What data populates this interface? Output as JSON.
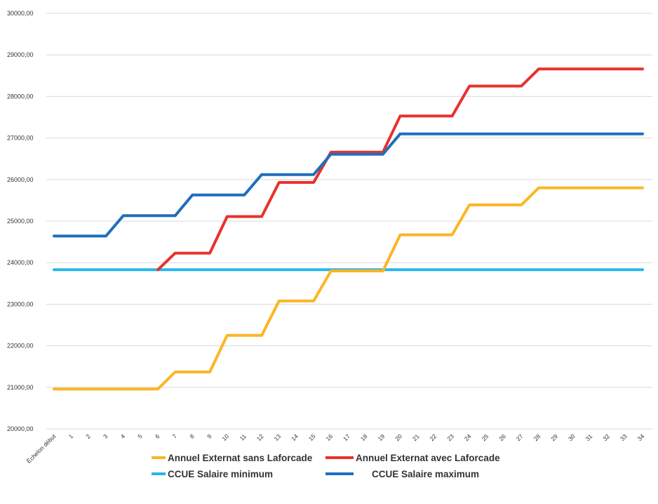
{
  "chart_data": {
    "type": "line",
    "title": "",
    "xlabel": "",
    "ylabel": "",
    "categories": [
      "Échelon début",
      "1",
      "2",
      "3",
      "4",
      "5",
      "6",
      "7",
      "8",
      "9",
      "10",
      "11",
      "12",
      "13",
      "14",
      "15",
      "16",
      "17",
      "18",
      "19",
      "20",
      "21",
      "22",
      "23",
      "24",
      "25",
      "26",
      "27",
      "28",
      "29",
      "30",
      "31",
      "32",
      "33",
      "34"
    ],
    "ylim": [
      20000,
      30000
    ],
    "yticks": [
      "20000,00",
      "21000,00",
      "22000,00",
      "23000,00",
      "24000,00",
      "25000,00",
      "26000,00",
      "27000,00",
      "28000,00",
      "29000,00",
      "30000,00"
    ],
    "grid": true,
    "legend_position": "bottom",
    "series": [
      {
        "name": "Annuel Externat sans Laforcade",
        "color": "#FBB625",
        "values": [
          20960,
          20960,
          20960,
          20960,
          20960,
          20960,
          20960,
          21370,
          21370,
          21370,
          22250,
          22250,
          22250,
          23080,
          23080,
          23080,
          23800,
          23800,
          23800,
          23800,
          24670,
          24670,
          24670,
          24670,
          25390,
          25390,
          25390,
          25390,
          25800,
          25800,
          25800,
          25800,
          25800,
          25800,
          25800
        ]
      },
      {
        "name": "Annuel Externat avec Laforcade",
        "color": "#E8312C",
        "values": [
          null,
          null,
          null,
          null,
          null,
          null,
          23830,
          24230,
          24230,
          24230,
          25110,
          25110,
          25110,
          25930,
          25930,
          25930,
          26660,
          26660,
          26660,
          26660,
          27530,
          27530,
          27530,
          27530,
          28250,
          28250,
          28250,
          28250,
          28660,
          28660,
          28660,
          28660,
          28660,
          28660,
          28660
        ]
      },
      {
        "name": "CCUE Salaire minimum",
        "color": "#29B6E8",
        "values": [
          23830,
          23830,
          23830,
          23830,
          23830,
          23830,
          23830,
          23830,
          23830,
          23830,
          23830,
          23830,
          23830,
          23830,
          23830,
          23830,
          23830,
          23830,
          23830,
          23830,
          23830,
          23830,
          23830,
          23830,
          23830,
          23830,
          23830,
          23830,
          23830,
          23830,
          23830,
          23830,
          23830,
          23830,
          23830
        ]
      },
      {
        "name": "CCUE Salaire maximum",
        "color": "#1F6EBF",
        "values": [
          24640,
          24640,
          24640,
          24640,
          25130,
          25130,
          25130,
          25130,
          25630,
          25630,
          25630,
          25630,
          26120,
          26120,
          26120,
          26120,
          26610,
          26610,
          26610,
          26610,
          27100,
          27100,
          27100,
          27100,
          27100,
          27100,
          27100,
          27100,
          27100,
          27100,
          27100,
          27100,
          27100,
          27100,
          27100
        ]
      }
    ]
  }
}
